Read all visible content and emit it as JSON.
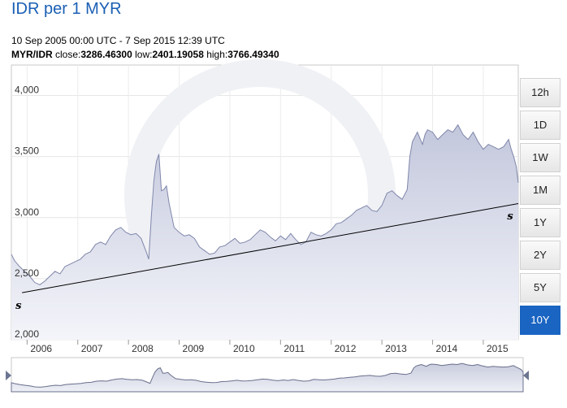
{
  "header": {
    "title": "IDR per 1 MYR",
    "date_range": "10 Sep 2005 00:00 UTC - 7 Sep 2015 12:39 UTC",
    "pair": "MYR/IDR",
    "close_label": "close:",
    "close_value": "3286.46300",
    "low_label": "low:",
    "low_value": "2401.19058",
    "high_label": "high:",
    "high_value": "3766.49340"
  },
  "range_buttons": [
    {
      "label": "12h",
      "active": false
    },
    {
      "label": "1D",
      "active": false
    },
    {
      "label": "1W",
      "active": false
    },
    {
      "label": "1M",
      "active": false
    },
    {
      "label": "1Y",
      "active": false
    },
    {
      "label": "2Y",
      "active": false
    },
    {
      "label": "5Y",
      "active": false
    },
    {
      "label": "10Y",
      "active": true
    }
  ],
  "colors": {
    "line": "#7f86aa",
    "fill_top": "#c3c7dc",
    "fill_bottom": "#f4f5fa",
    "active_button": "#1a64c2",
    "title": "#1a5fb4"
  },
  "chart_data": {
    "type": "area",
    "ylim": [
      2000,
      4250
    ],
    "xlim": [
      2005.69,
      2015.69
    ],
    "y_ticks": [
      {
        "value": 2000,
        "label": "2,000"
      },
      {
        "value": 2500,
        "label": "2,500"
      },
      {
        "value": 3000,
        "label": "3,000"
      },
      {
        "value": 3500,
        "label": "3,500"
      },
      {
        "value": 4000,
        "label": "4,000"
      }
    ],
    "x_ticks": [
      {
        "value": 2006,
        "label": "2006"
      },
      {
        "value": 2007,
        "label": "2007"
      },
      {
        "value": 2008,
        "label": "2008"
      },
      {
        "value": 2009,
        "label": "2009"
      },
      {
        "value": 2010,
        "label": "2010"
      },
      {
        "value": 2011,
        "label": "2011"
      },
      {
        "value": 2012,
        "label": "2012"
      },
      {
        "value": 2013,
        "label": "2013"
      },
      {
        "value": 2014,
        "label": "2014"
      },
      {
        "value": 2015,
        "label": "2015"
      }
    ],
    "series": [
      {
        "x": [
          2005.69,
          2005.75,
          2005.85,
          2005.95,
          2006.05,
          2006.15,
          2006.25,
          2006.35,
          2006.45,
          2006.55,
          2006.65,
          2006.75,
          2006.85,
          2006.95,
          2007.05,
          2007.15,
          2007.25,
          2007.35,
          2007.45,
          2007.55,
          2007.65,
          2007.75,
          2007.85,
          2007.95,
          2008.05,
          2008.15,
          2008.25,
          2008.35,
          2008.4,
          2008.45,
          2008.5,
          2008.55,
          2008.6,
          2008.65,
          2008.7,
          2008.75,
          2008.8,
          2008.9,
          2009.0,
          2009.1,
          2009.2,
          2009.3,
          2009.4,
          2009.5,
          2009.6,
          2009.7,
          2009.8,
          2009.9,
          2010.0,
          2010.1,
          2010.2,
          2010.3,
          2010.4,
          2010.5,
          2010.6,
          2010.7,
          2010.8,
          2010.9,
          2011.0,
          2011.1,
          2011.2,
          2011.3,
          2011.4,
          2011.5,
          2011.6,
          2011.7,
          2011.8,
          2011.9,
          2012.0,
          2012.1,
          2012.2,
          2012.3,
          2012.4,
          2012.5,
          2012.6,
          2012.7,
          2012.8,
          2012.9,
          2013.0,
          2013.1,
          2013.2,
          2013.3,
          2013.4,
          2013.5,
          2013.55,
          2013.6,
          2013.65,
          2013.7,
          2013.75,
          2013.8,
          2013.85,
          2013.9,
          2014.0,
          2014.1,
          2014.2,
          2014.3,
          2014.4,
          2014.5,
          2014.6,
          2014.7,
          2014.8,
          2014.9,
          2015.0,
          2015.1,
          2015.2,
          2015.3,
          2015.4,
          2015.5,
          2015.55,
          2015.6,
          2015.65,
          2015.69
        ],
        "y": [
          2700,
          2650,
          2600,
          2560,
          2520,
          2470,
          2450,
          2480,
          2520,
          2560,
          2540,
          2600,
          2620,
          2640,
          2660,
          2700,
          2720,
          2780,
          2800,
          2780,
          2850,
          2900,
          2920,
          2880,
          2860,
          2870,
          2830,
          2720,
          2660,
          3000,
          3300,
          3460,
          3520,
          3220,
          3230,
          3260,
          3120,
          2920,
          2880,
          2850,
          2860,
          2830,
          2760,
          2730,
          2700,
          2710,
          2760,
          2770,
          2800,
          2830,
          2790,
          2800,
          2820,
          2860,
          2900,
          2880,
          2840,
          2810,
          2850,
          2820,
          2870,
          2820,
          2780,
          2800,
          2880,
          2860,
          2850,
          2870,
          2900,
          2950,
          2960,
          2990,
          3020,
          3060,
          3080,
          3100,
          3060,
          3050,
          3100,
          3200,
          3220,
          3180,
          3150,
          3230,
          3500,
          3620,
          3660,
          3700,
          3650,
          3600,
          3680,
          3720,
          3700,
          3640,
          3680,
          3720,
          3700,
          3760,
          3680,
          3640,
          3700,
          3620,
          3560,
          3600,
          3580,
          3560,
          3580,
          3640,
          3560,
          3500,
          3420,
          3286
        ]
      }
    ],
    "annotations": [
      {
        "label": "s",
        "x": 2005.9,
        "y": 2385
      },
      {
        "label": "s",
        "x": 2015.6,
        "y": 3120
      }
    ],
    "trend_line": {
      "x": [
        2005.9,
        2015.69
      ],
      "y": [
        2385,
        3115
      ]
    },
    "grid": true,
    "watermark": "xe"
  }
}
